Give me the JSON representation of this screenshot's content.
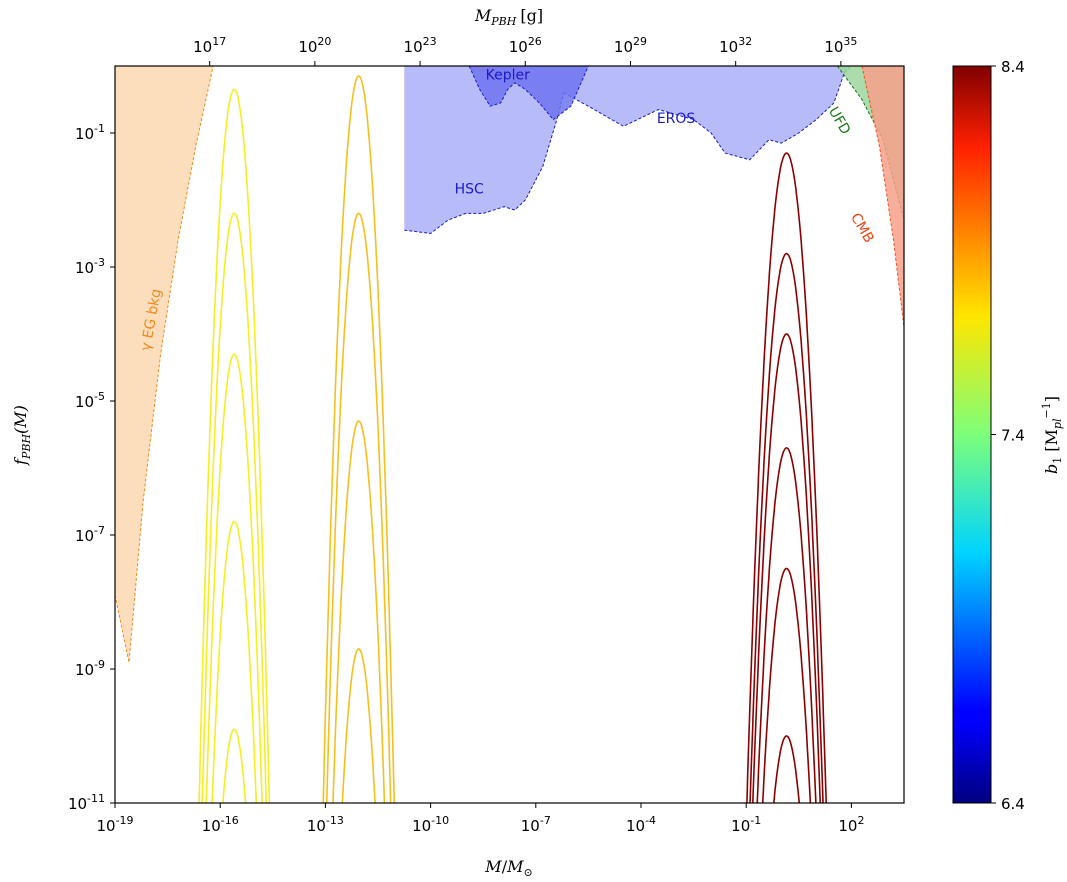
{
  "chart_data": {
    "type": "line",
    "title": "",
    "xlabel_main": "M",
    "xlabel_sub": "⊙",
    "xlabel_sep": "/",
    "xlabel_top_main": "M",
    "xlabel_top_sub": "PBH",
    "xlabel_top_unit": "[g]",
    "ylabel_main": "f",
    "ylabel_sub": "PBH",
    "ylabel_arg": "(M)",
    "x_scale": "log",
    "y_scale": "log",
    "xlim_log10": [
      -19,
      3.5
    ],
    "ylim_log10": [
      -11,
      0
    ],
    "x_ticks": [
      {
        "exp": -19,
        "base": "10",
        "sup": "-19"
      },
      {
        "exp": -16,
        "base": "10",
        "sup": "-16"
      },
      {
        "exp": -13,
        "base": "10",
        "sup": "-13"
      },
      {
        "exp": -10,
        "base": "10",
        "sup": "-10"
      },
      {
        "exp": -7,
        "base": "10",
        "sup": "-7"
      },
      {
        "exp": -4,
        "base": "10",
        "sup": "-4"
      },
      {
        "exp": -1,
        "base": "10",
        "sup": "-1"
      },
      {
        "exp": 2,
        "base": "10",
        "sup": "2"
      }
    ],
    "y_ticks": [
      {
        "exp": -1,
        "base": "10",
        "sup": "-1"
      },
      {
        "exp": -3,
        "base": "10",
        "sup": "-3"
      },
      {
        "exp": -5,
        "base": "10",
        "sup": "-5"
      },
      {
        "exp": -7,
        "base": "10",
        "sup": "-7"
      },
      {
        "exp": -9,
        "base": "10",
        "sup": "-9"
      },
      {
        "exp": -11,
        "base": "10",
        "sup": "-11"
      }
    ],
    "top_ticks": [
      {
        "exp_g": 17,
        "base": "10",
        "sup": "17"
      },
      {
        "exp_g": 20,
        "base": "10",
        "sup": "20"
      },
      {
        "exp_g": 23,
        "base": "10",
        "sup": "23"
      },
      {
        "exp_g": 26,
        "base": "10",
        "sup": "26"
      },
      {
        "exp_g": 29,
        "base": "10",
        "sup": "29"
      },
      {
        "exp_g": 32,
        "base": "10",
        "sup": "32"
      },
      {
        "exp_g": 35,
        "base": "10",
        "sup": "35"
      }
    ],
    "grams_per_solar_mass_log10": 33.3,
    "constraints": [
      {
        "label": "γ EG bkg",
        "fill": "#fdd8b0",
        "edge": "#f08a1a",
        "label_color": "#f08a1a",
        "label_x": -17.85,
        "label_y": -3.8,
        "label_angle": -80,
        "boundary": [
          [
            -19,
            -7.9
          ],
          [
            -18.6,
            -8.9
          ],
          [
            -18.2,
            -6.5
          ],
          [
            -17.7,
            -4.3
          ],
          [
            -17.2,
            -2.6
          ],
          [
            -16.7,
            -1.2
          ],
          [
            -16.2,
            0
          ]
        ]
      },
      {
        "label": "HSC",
        "fill": "#aab0f8",
        "edge": "#1a1acc",
        "label_color": "#1a1acc",
        "label_x": -8.9,
        "label_y": -1.9,
        "label_angle": 0,
        "boundary": [
          [
            -10.75,
            -2.45
          ],
          [
            -10.0,
            -2.5
          ],
          [
            -9.5,
            -2.3
          ],
          [
            -9.0,
            -2.2
          ],
          [
            -8.5,
            -2.2
          ],
          [
            -7.9,
            -2.1
          ],
          [
            -7.6,
            -2.15
          ],
          [
            -7.3,
            -2.0
          ],
          [
            -6.8,
            -1.5
          ],
          [
            -6.4,
            -0.8
          ],
          [
            -6.2,
            -0.4
          ]
        ]
      },
      {
        "label": "EROS",
        "fill": "#aab0f8",
        "edge": "#1a1acc",
        "label_color": "#1a1acc",
        "label_x": -3.0,
        "label_y": -0.85,
        "label_angle": 0,
        "boundary": [
          [
            -6.2,
            -0.4
          ],
          [
            -5.5,
            -0.6
          ],
          [
            -4.5,
            -0.9
          ],
          [
            -3.5,
            -0.65
          ],
          [
            -2.5,
            -0.8
          ],
          [
            -2.0,
            -1.0
          ],
          [
            -1.6,
            -1.3
          ],
          [
            -0.9,
            -1.4
          ],
          [
            -0.35,
            -1.1
          ],
          [
            0.0,
            -1.15
          ],
          [
            0.5,
            -1.0
          ],
          [
            1.0,
            -0.8
          ],
          [
            1.5,
            -0.55
          ],
          [
            1.8,
            -0.1
          ],
          [
            2.0,
            0
          ]
        ]
      },
      {
        "label": "Kepler",
        "fill": "#6f74f0",
        "edge": "#1a1acc",
        "label_color": "#1a1acc",
        "label_x": -7.8,
        "label_y": -0.2,
        "label_angle": 0,
        "boundary": [
          [
            -8.9,
            0
          ],
          [
            -8.6,
            -0.35
          ],
          [
            -8.3,
            -0.6
          ],
          [
            -8.0,
            -0.55
          ],
          [
            -7.8,
            -0.35
          ],
          [
            -7.6,
            -0.25
          ],
          [
            -7.3,
            -0.35
          ],
          [
            -6.9,
            -0.55
          ],
          [
            -6.5,
            -0.8
          ],
          [
            -6.0,
            -0.6
          ],
          [
            -5.5,
            0
          ]
        ]
      },
      {
        "label": "UFD",
        "fill": "#9cd69c",
        "edge": "#1a6b1a",
        "label_color": "#1a7a1a",
        "label_x": 1.55,
        "label_y": -0.85,
        "label_angle": 60,
        "boundary": [
          [
            1.6,
            0
          ],
          [
            2.3,
            -0.5
          ],
          [
            2.9,
            -1.1
          ],
          [
            3.5,
            -2.3
          ]
        ]
      },
      {
        "label": "CMB",
        "fill": "#f6a08a",
        "edge": "#ee5522",
        "label_color": "#ee4411",
        "label_x": 2.2,
        "label_y": -2.45,
        "label_angle": 60,
        "boundary": [
          [
            2.3,
            0
          ],
          [
            2.8,
            -1.2
          ],
          [
            3.2,
            -2.6
          ],
          [
            3.5,
            -3.9
          ]
        ]
      }
    ],
    "colorbar": {
      "label_main": "b",
      "label_sub": "1",
      "label_unit": "[M",
      "label_unit_sub": "pl",
      "label_unit_sup": "−1",
      "label_close": "]",
      "min": 6.4,
      "max": 8.4,
      "ticks": [
        8.4,
        7.4,
        6.4
      ],
      "tick_labels": [
        "8.4",
        "7.4",
        "6.4"
      ],
      "colormap": "jet"
    },
    "series": [
      {
        "b1": 7.85,
        "color": "#f4ee22",
        "peak_logM": -15.6,
        "width": 0.55,
        "peaks_log10": [
          -0.35,
          -2.2,
          -4.3,
          -6.8,
          -9.9
        ]
      },
      {
        "b1": 7.95,
        "color": "#f6bf1e",
        "peak_logM": -12.05,
        "width": 0.55,
        "peaks_log10": [
          -0.15,
          -2.2,
          -5.3,
          -8.7
        ]
      },
      {
        "b1": 8.4,
        "color": "#8b0000",
        "peak_logM": 0.15,
        "width": 0.65,
        "peaks_log10": [
          -1.3,
          -2.8,
          -4.0,
          -5.7,
          -7.5,
          -10.0
        ]
      }
    ]
  }
}
